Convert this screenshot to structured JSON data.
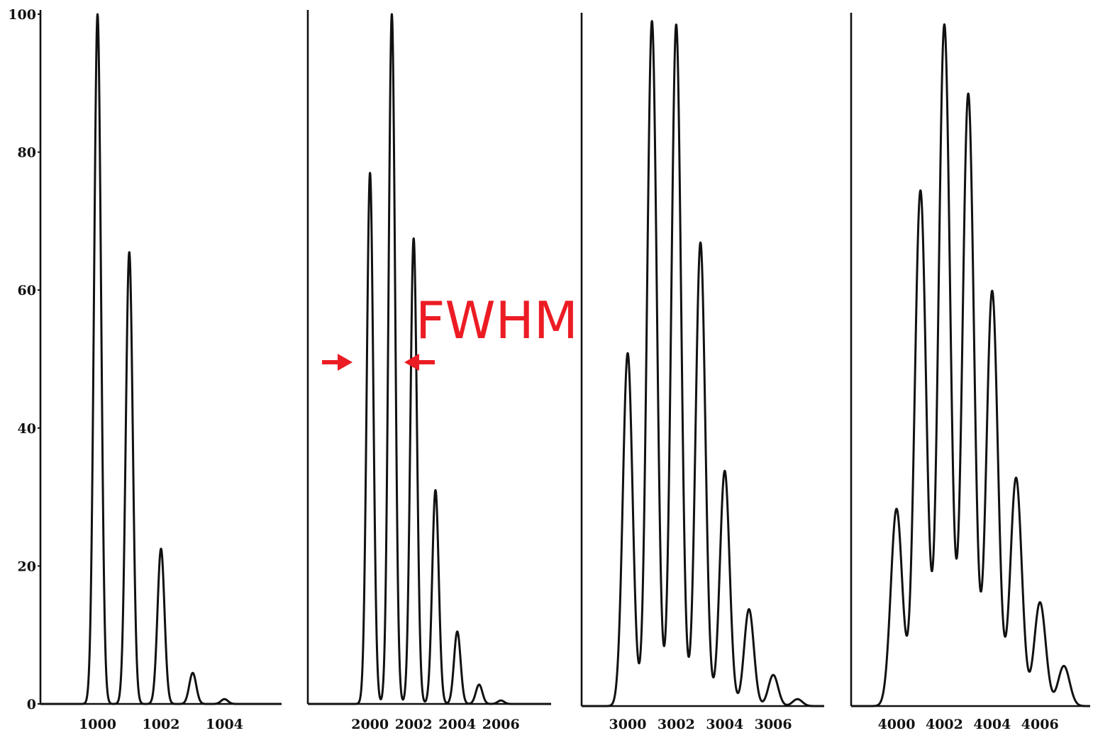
{
  "chart_data": [
    {
      "type": "line",
      "ylim": [
        0,
        100
      ],
      "xlim": [
        998.2,
        1005.8
      ],
      "x_ticks": [
        "1000",
        "1002",
        "1004"
      ],
      "x_tick_values": [
        1000,
        1002,
        1004
      ],
      "y_ticks": [
        "0",
        "20",
        "40",
        "60",
        "80",
        "100"
      ],
      "y_tick_values": [
        0,
        20,
        40,
        60,
        80,
        100
      ],
      "peak_width": 0.11,
      "peaks": [
        {
          "x": 1000,
          "y": 100
        },
        {
          "x": 1001,
          "y": 65.5
        },
        {
          "x": 1002,
          "y": 22.5
        },
        {
          "x": 1003,
          "y": 4.5
        },
        {
          "x": 1004,
          "y": 0.7
        }
      ]
    },
    {
      "type": "line",
      "ylim": [
        0,
        100
      ],
      "xlim": [
        1997.15,
        2008.3
      ],
      "x_ticks": [
        "2000",
        "2002",
        "2004",
        "2006"
      ],
      "x_tick_values": [
        2000,
        2002,
        2004,
        2006
      ],
      "peak_width": 0.15,
      "peaks": [
        {
          "x": 2000,
          "y": 77
        },
        {
          "x": 2001,
          "y": 100
        },
        {
          "x": 2002,
          "y": 67.5
        },
        {
          "x": 2003,
          "y": 31
        },
        {
          "x": 2004,
          "y": 10.5
        },
        {
          "x": 2005,
          "y": 2.8
        },
        {
          "x": 2006,
          "y": 0.5
        }
      ]
    },
    {
      "type": "line",
      "ylim": [
        0,
        100
      ],
      "xlim": [
        2998.1,
        3008.1
      ],
      "x_ticks": [
        "3000",
        "3002",
        "3004",
        "3006"
      ],
      "x_tick_values": [
        3000,
        3002,
        3004,
        3006
      ],
      "peak_width": 0.2,
      "peaks": [
        {
          "x": 3000,
          "y": 51
        },
        {
          "x": 3001,
          "y": 99
        },
        {
          "x": 3002,
          "y": 98.5
        },
        {
          "x": 3003,
          "y": 67
        },
        {
          "x": 3004,
          "y": 34
        },
        {
          "x": 3005,
          "y": 14
        },
        {
          "x": 3006,
          "y": 4.5
        },
        {
          "x": 3007,
          "y": 1
        }
      ]
    },
    {
      "type": "line",
      "ylim": [
        0,
        100
      ],
      "xlim": [
        3998.1,
        4008.1
      ],
      "x_ticks": [
        "4000",
        "4002",
        "4004",
        "4006"
      ],
      "x_tick_values": [
        4000,
        4002,
        4004,
        4006
      ],
      "peak_width": 0.24,
      "peaks": [
        {
          "x": 4000,
          "y": 28.5
        },
        {
          "x": 4001,
          "y": 74.5
        },
        {
          "x": 4002,
          "y": 98.5
        },
        {
          "x": 4003,
          "y": 88.5
        },
        {
          "x": 4004,
          "y": 60
        },
        {
          "x": 4005,
          "y": 33
        },
        {
          "x": 4006,
          "y": 15
        },
        {
          "x": 4007,
          "y": 5.8
        }
      ]
    }
  ],
  "annotation": {
    "label": "FWHM",
    "color": "#ec1c24"
  },
  "colors": {
    "line": "#111111",
    "background": "#ffffff"
  }
}
